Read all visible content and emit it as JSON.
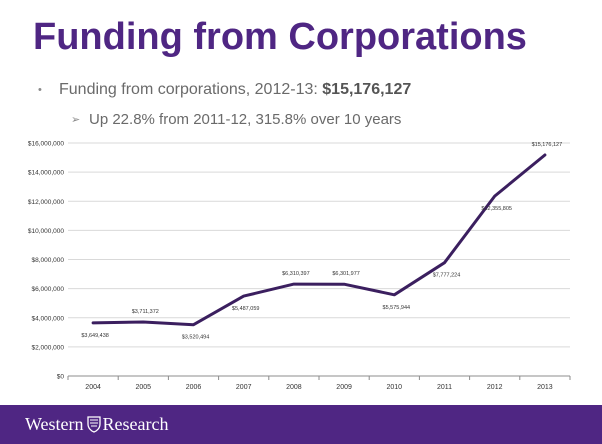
{
  "slide": {
    "title": "Funding from Corporations",
    "bullet": {
      "text": "Funding from corporations, 2012-13: ",
      "amount": "$15,176,127"
    },
    "sub_bullet": "Up 22.8% from 2011-12, 315.8% over 10 years"
  },
  "footer": {
    "logo_text_1": "Western",
    "logo_text_2": "Research",
    "background": "#4f2683"
  },
  "colors": {
    "accent": "#4f2683",
    "line": "#3b1f5f"
  },
  "chart_data": {
    "type": "line",
    "x": [
      "2004",
      "2005",
      "2006",
      "2007",
      "2008",
      "2009",
      "2010",
      "2011",
      "2012",
      "2013"
    ],
    "values": [
      3649438,
      3711372,
      3520494,
      5487059,
      6310397,
      6301977,
      5575944,
      7777224,
      12355805,
      15176127
    ],
    "data_labels": [
      "$3,649,438",
      "$3,711,372",
      "$3,520,494",
      "$5,487,059",
      "$6,310,397",
      "$6,301,977",
      "$5,575,944",
      "$7,777,224",
      "$12,355,805",
      "$15,176,127"
    ],
    "y_ticks": [
      0,
      2000000,
      4000000,
      6000000,
      8000000,
      10000000,
      12000000,
      14000000,
      16000000
    ],
    "y_tick_labels": [
      "$0",
      "$2,000,000",
      "$4,000,000",
      "$6,000,000",
      "$8,000,000",
      "$10,000,000",
      "$12,000,000",
      "$14,000,000",
      "$16,000,000"
    ],
    "ylim": [
      0,
      16000000
    ],
    "grid": true,
    "legend": false
  }
}
